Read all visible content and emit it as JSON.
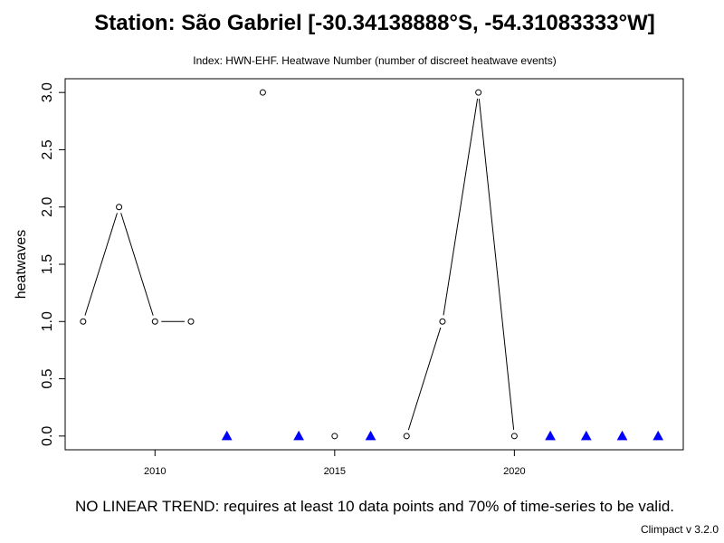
{
  "chart_data": {
    "type": "line",
    "title": "Station: São Gabriel [-30.34138888°S, -54.31083333°W]",
    "subtitle": "Index: HWN-EHF. Heatwave Number (number of discreet heatwave events)",
    "xlabel": "",
    "ylabel": "heatwaves",
    "xlim": [
      2007.5,
      2024.7
    ],
    "ylim": [
      -0.12,
      3.12
    ],
    "x_ticks": [
      2010,
      2015,
      2020
    ],
    "y_ticks": [
      "0.0",
      "0.5",
      "1.0",
      "1.5",
      "2.0",
      "2.5",
      "3.0"
    ],
    "grid": false,
    "series": [
      {
        "x": [
          2008,
          2009,
          2010,
          2011,
          2012,
          2013,
          2014,
          2015,
          2016,
          2017,
          2018,
          2019,
          2020,
          2021,
          2022,
          2023,
          2024
        ],
        "values": [
          1,
          2,
          1,
          1,
          null,
          3,
          null,
          0,
          null,
          0,
          1,
          3,
          0,
          null,
          null,
          null,
          null
        ]
      }
    ],
    "zero_markers": {
      "color": "#0000ff",
      "x": [
        2012,
        2014,
        2016,
        2021,
        2022,
        2023,
        2024
      ],
      "values": [
        0,
        0,
        0,
        0,
        0,
        0,
        0
      ]
    },
    "trend_note": "NO LINEAR TREND: requires at least 10 data points and 70% of time-series to be valid.",
    "credit": "Climpact v 3.2.0"
  }
}
